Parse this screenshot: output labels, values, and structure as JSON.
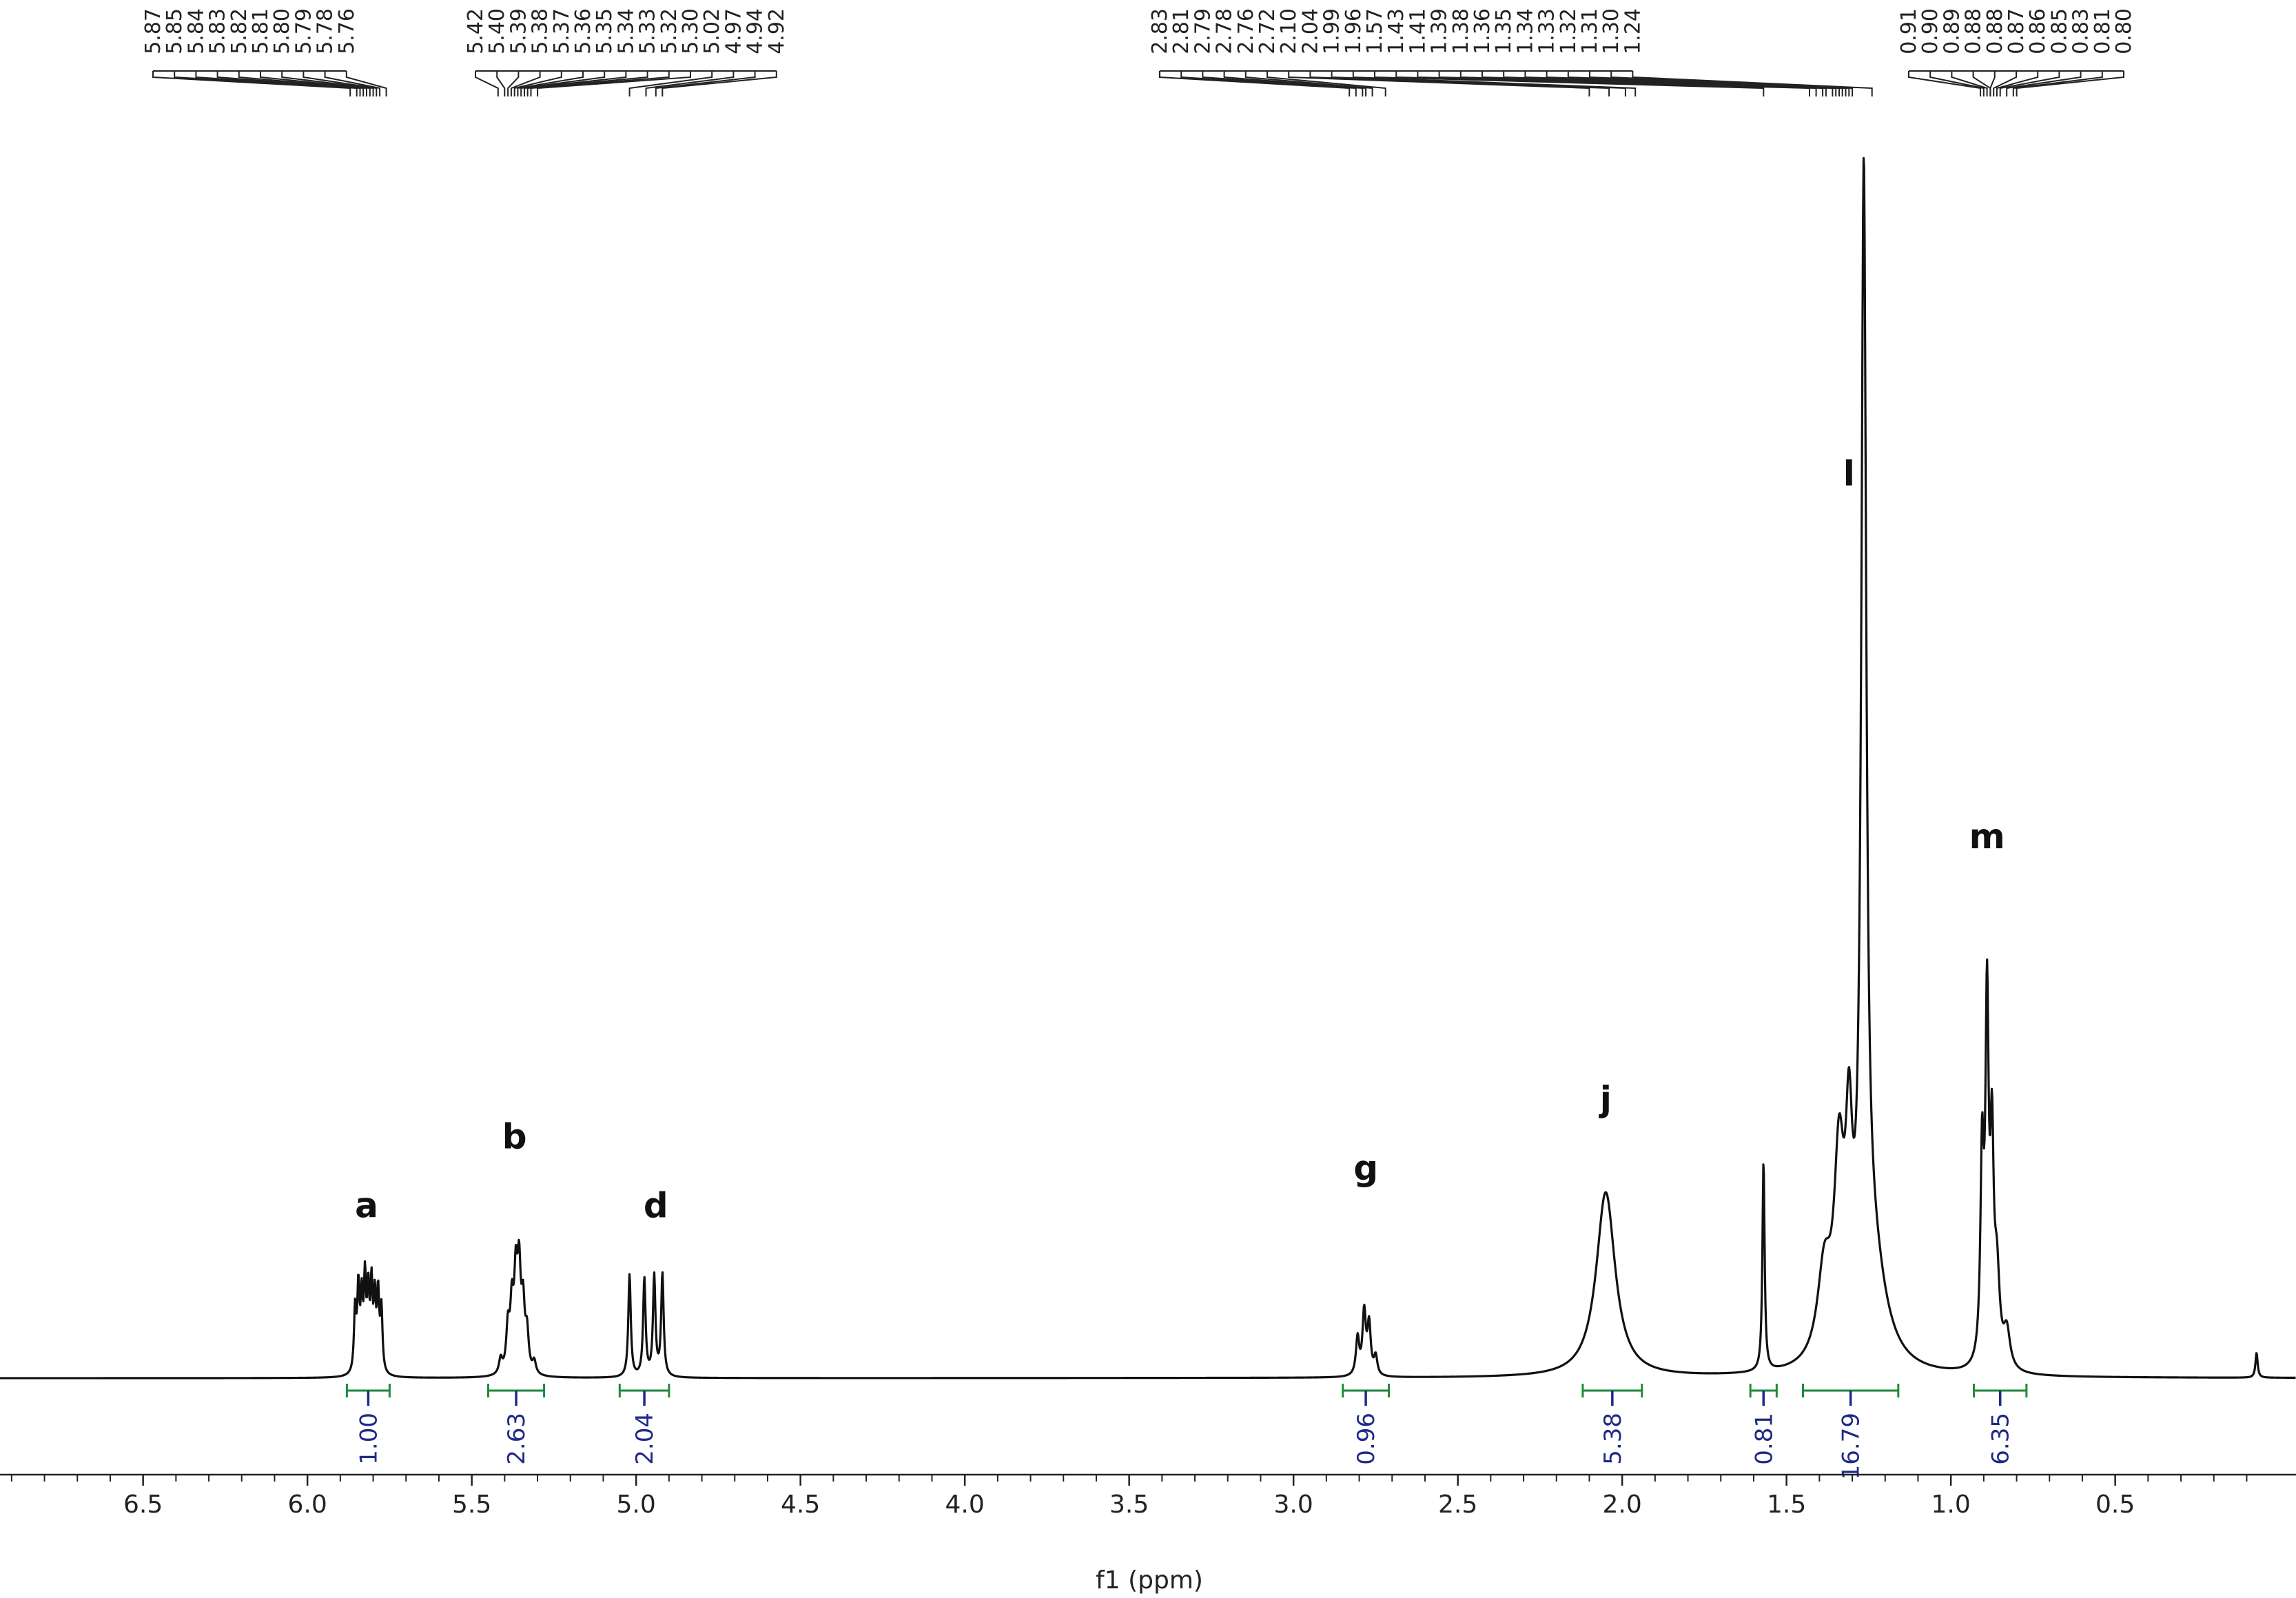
{
  "chart_data": {
    "type": "line",
    "xlabel": "f1 (ppm)",
    "ylabel": "",
    "xlim": [
      7.0,
      0.05
    ],
    "x_reversed": true,
    "xticks": [
      "6.5",
      "6.0",
      "5.5",
      "5.0",
      "4.5",
      "4.0",
      "3.5",
      "3.0",
      "2.5",
      "2.0",
      "1.5",
      "1.0",
      "0.5"
    ],
    "grid": false,
    "peak_label_groups": [
      {
        "labels": [
          "5.87",
          "5.85",
          "5.84",
          "5.83",
          "5.82",
          "5.81",
          "5.80",
          "5.79",
          "5.78",
          "5.76"
        ],
        "targets": [
          5.87,
          5.85,
          5.84,
          5.83,
          5.82,
          5.81,
          5.8,
          5.79,
          5.78,
          5.76
        ]
      },
      {
        "labels": [
          "5.42",
          "5.40",
          "5.39",
          "5.38",
          "5.37",
          "5.36",
          "5.35",
          "5.34",
          "5.33",
          "5.32",
          "5.30",
          "5.02",
          "4.97",
          "4.94",
          "4.92"
        ],
        "targets": [
          5.42,
          5.4,
          5.39,
          5.38,
          5.37,
          5.36,
          5.35,
          5.34,
          5.33,
          5.32,
          5.3,
          5.02,
          4.97,
          4.94,
          4.92
        ]
      },
      {
        "labels": [
          "2.83",
          "2.81",
          "2.79",
          "2.78",
          "2.76",
          "2.72",
          "2.10",
          "2.04",
          "1.99",
          "1.96",
          "1.57",
          "1.43",
          "1.41",
          "1.39",
          "1.38",
          "1.36",
          "1.35",
          "1.34",
          "1.33",
          "1.32",
          "1.31",
          "1.30",
          "1.24"
        ],
        "targets": [
          2.83,
          2.81,
          2.79,
          2.78,
          2.76,
          2.72,
          2.1,
          2.04,
          1.99,
          1.96,
          1.57,
          1.43,
          1.41,
          1.39,
          1.38,
          1.36,
          1.35,
          1.34,
          1.33,
          1.32,
          1.31,
          1.3,
          1.24
        ]
      },
      {
        "labels": [
          "0.91",
          "0.90",
          "0.89",
          "0.88",
          "0.88",
          "0.87",
          "0.86",
          "0.85",
          "0.83",
          "0.81",
          "0.80"
        ],
        "targets": [
          0.91,
          0.9,
          0.89,
          0.88,
          0.88,
          0.87,
          0.86,
          0.85,
          0.83,
          0.81,
          0.8
        ]
      }
    ],
    "assignments": [
      {
        "label": "a",
        "ppm": 5.82,
        "intensity": 0.115
      },
      {
        "label": "b",
        "ppm": 5.37,
        "intensity": 0.17
      },
      {
        "label": "d",
        "ppm": 4.94,
        "intensity": 0.115
      },
      {
        "label": "g",
        "ppm": 2.78,
        "intensity": 0.145
      },
      {
        "label": "j",
        "ppm": 2.05,
        "intensity": 0.2
      },
      {
        "label": "l",
        "ppm": 1.31,
        "intensity": 0.7
      },
      {
        "label": "m",
        "ppm": 0.89,
        "intensity": 0.41
      }
    ],
    "integrals": [
      {
        "value": "1.00",
        "from": 5.88,
        "to": 5.75
      },
      {
        "value": "2.63",
        "from": 5.45,
        "to": 5.28
      },
      {
        "value": "2.04",
        "from": 5.05,
        "to": 4.9
      },
      {
        "value": "0.96",
        "from": 2.85,
        "to": 2.71
      },
      {
        "value": "5.38",
        "from": 2.12,
        "to": 1.94
      },
      {
        "value": "0.81",
        "from": 1.61,
        "to": 1.53
      },
      {
        "value": "16.79",
        "from": 1.45,
        "to": 1.16
      },
      {
        "value": "6.35",
        "from": 0.93,
        "to": 0.77
      }
    ],
    "peaks": [
      {
        "ppm": 5.855,
        "intensity": 0.05,
        "width": 0.004
      },
      {
        "ppm": 5.845,
        "intensity": 0.065,
        "width": 0.004
      },
      {
        "ppm": 5.835,
        "intensity": 0.055,
        "width": 0.004
      },
      {
        "ppm": 5.825,
        "intensity": 0.07,
        "width": 0.004
      },
      {
        "ppm": 5.815,
        "intensity": 0.06,
        "width": 0.004
      },
      {
        "ppm": 5.805,
        "intensity": 0.065,
        "width": 0.004
      },
      {
        "ppm": 5.795,
        "intensity": 0.055,
        "width": 0.004
      },
      {
        "ppm": 5.785,
        "intensity": 0.06,
        "width": 0.004
      },
      {
        "ppm": 5.775,
        "intensity": 0.05,
        "width": 0.004
      },
      {
        "ppm": 5.412,
        "intensity": 0.012,
        "width": 0.006
      },
      {
        "ppm": 5.39,
        "intensity": 0.035,
        "width": 0.006
      },
      {
        "ppm": 5.378,
        "intensity": 0.05,
        "width": 0.006
      },
      {
        "ppm": 5.366,
        "intensity": 0.07,
        "width": 0.006
      },
      {
        "ppm": 5.356,
        "intensity": 0.075,
        "width": 0.006
      },
      {
        "ppm": 5.344,
        "intensity": 0.05,
        "width": 0.006
      },
      {
        "ppm": 5.332,
        "intensity": 0.03,
        "width": 0.006
      },
      {
        "ppm": 5.31,
        "intensity": 0.01,
        "width": 0.006
      },
      {
        "ppm": 5.02,
        "intensity": 0.082,
        "width": 0.0045
      },
      {
        "ppm": 4.975,
        "intensity": 0.078,
        "width": 0.0045
      },
      {
        "ppm": 4.945,
        "intensity": 0.08,
        "width": 0.0045
      },
      {
        "ppm": 4.92,
        "intensity": 0.082,
        "width": 0.0045
      },
      {
        "ppm": 2.805,
        "intensity": 0.03,
        "width": 0.006
      },
      {
        "ppm": 2.785,
        "intensity": 0.05,
        "width": 0.006
      },
      {
        "ppm": 2.77,
        "intensity": 0.04,
        "width": 0.006
      },
      {
        "ppm": 2.75,
        "intensity": 0.015,
        "width": 0.006
      },
      {
        "ppm": 2.05,
        "intensity": 0.148,
        "width": 0.035
      },
      {
        "ppm": 1.57,
        "intensity": 0.168,
        "width": 0.004
      },
      {
        "ppm": 1.385,
        "intensity": 0.07,
        "width": 0.025
      },
      {
        "ppm": 1.34,
        "intensity": 0.145,
        "width": 0.018
      },
      {
        "ppm": 1.31,
        "intensity": 0.14,
        "width": 0.012
      },
      {
        "ppm": 1.265,
        "intensity": 0.89,
        "width": 0.009
      },
      {
        "ppm": 1.24,
        "intensity": 0.085,
        "width": 0.05
      },
      {
        "ppm": 0.905,
        "intensity": 0.16,
        "width": 0.006
      },
      {
        "ppm": 0.89,
        "intensity": 0.28,
        "width": 0.006
      },
      {
        "ppm": 0.875,
        "intensity": 0.16,
        "width": 0.006
      },
      {
        "ppm": 0.86,
        "intensity": 0.07,
        "width": 0.01
      },
      {
        "ppm": 0.83,
        "intensity": 0.03,
        "width": 0.012
      },
      {
        "ppm": 0.07,
        "intensity": 0.02,
        "width": 0.004
      }
    ]
  }
}
